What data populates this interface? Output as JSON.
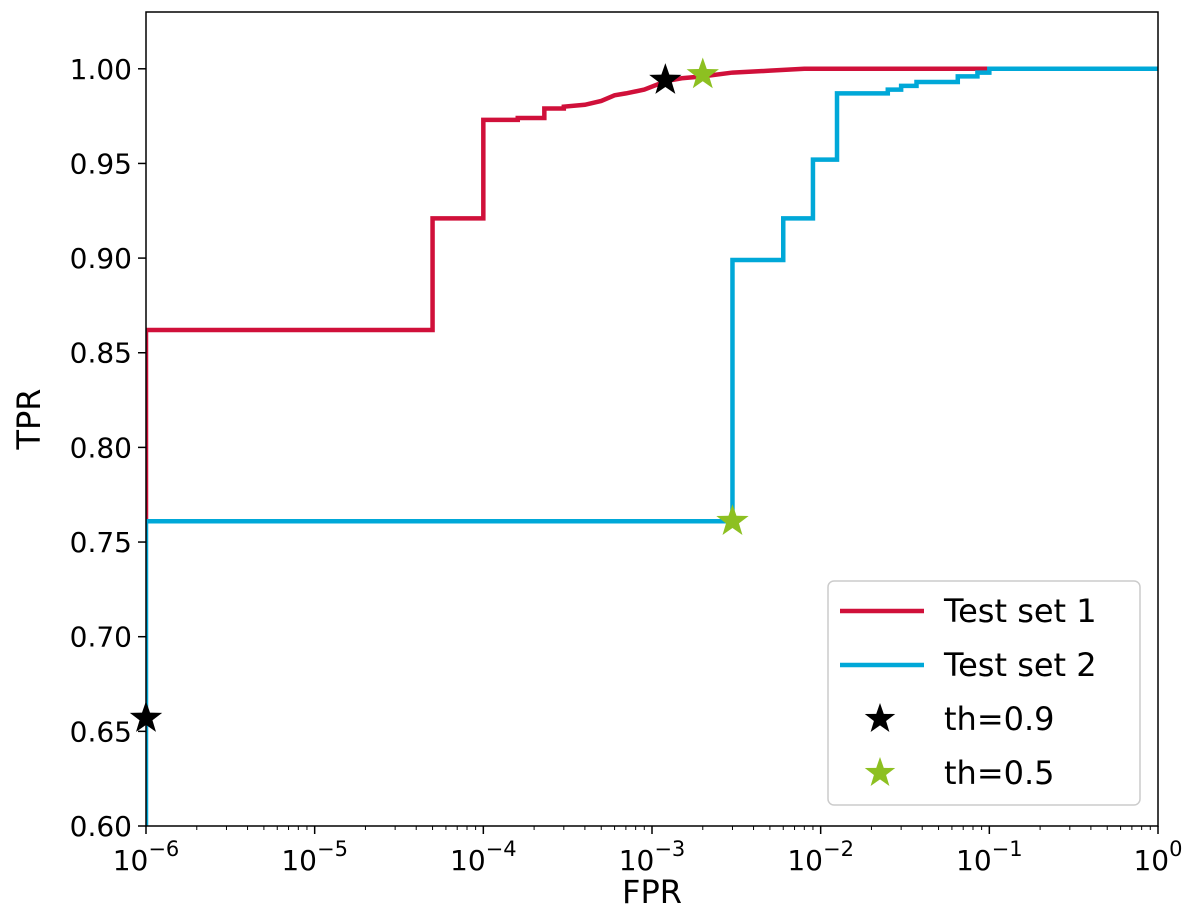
{
  "chart_data": {
    "type": "line",
    "title": "",
    "xlabel": "FPR",
    "ylabel": "TPR",
    "xscale": "log",
    "xlim": [
      1e-06,
      1
    ],
    "ylim": [
      0.6,
      1.03
    ],
    "x_ticks": [
      {
        "value": 1e-06,
        "base": "10",
        "exp": "−6"
      },
      {
        "value": 1e-05,
        "base": "10",
        "exp": "−5"
      },
      {
        "value": 0.0001,
        "base": "10",
        "exp": "−4"
      },
      {
        "value": 0.001,
        "base": "10",
        "exp": "−3"
      },
      {
        "value": 0.01,
        "base": "10",
        "exp": "−2"
      },
      {
        "value": 0.1,
        "base": "10",
        "exp": "−1"
      },
      {
        "value": 1,
        "base": "10",
        "exp": "0"
      }
    ],
    "y_ticks": [
      "0.60",
      "0.65",
      "0.70",
      "0.75",
      "0.80",
      "0.85",
      "0.90",
      "0.95",
      "1.00"
    ],
    "grid": false,
    "legend_position": "bottom-right",
    "series": [
      {
        "name": "Test set 1",
        "color": "#d0103a",
        "kind": "line",
        "points": [
          [
            1e-06,
            0.762
          ],
          [
            1e-06,
            0.862
          ],
          [
            5e-05,
            0.862
          ],
          [
            5e-05,
            0.921
          ],
          [
            0.0001,
            0.921
          ],
          [
            0.0001,
            0.973
          ],
          [
            0.00016,
            0.973
          ],
          [
            0.00016,
            0.974
          ],
          [
            0.00023,
            0.974
          ],
          [
            0.00023,
            0.979
          ],
          [
            0.0003,
            0.979
          ],
          [
            0.0003,
            0.98
          ],
          [
            0.0004,
            0.981
          ],
          [
            0.0005,
            0.983
          ],
          [
            0.0006,
            0.986
          ],
          [
            0.0007,
            0.987
          ],
          [
            0.0009,
            0.989
          ],
          [
            0.0011,
            0.992
          ],
          [
            0.0013,
            0.994
          ],
          [
            0.0015,
            0.995
          ],
          [
            0.002,
            0.996
          ],
          [
            0.003,
            0.998
          ],
          [
            0.005,
            0.999
          ],
          [
            0.008,
            1.0
          ],
          [
            0.1,
            1.0
          ]
        ]
      },
      {
        "name": "Test set 2",
        "color": "#00a8d8",
        "kind": "line",
        "points": [
          [
            1e-06,
            0.6
          ],
          [
            1e-06,
            0.761
          ],
          [
            0.003,
            0.761
          ],
          [
            0.003,
            0.899
          ],
          [
            0.006,
            0.899
          ],
          [
            0.006,
            0.921
          ],
          [
            0.009,
            0.921
          ],
          [
            0.009,
            0.952
          ],
          [
            0.0125,
            0.952
          ],
          [
            0.0125,
            0.987
          ],
          [
            0.025,
            0.987
          ],
          [
            0.025,
            0.989
          ],
          [
            0.03,
            0.989
          ],
          [
            0.03,
            0.991
          ],
          [
            0.037,
            0.991
          ],
          [
            0.037,
            0.993
          ],
          [
            0.065,
            0.993
          ],
          [
            0.065,
            0.996
          ],
          [
            0.085,
            0.996
          ],
          [
            0.085,
            0.998
          ],
          [
            0.1,
            0.998
          ],
          [
            0.1,
            1.0
          ],
          [
            1,
            1.0
          ]
        ]
      },
      {
        "name": "th=0.9",
        "color": "#000000",
        "kind": "marker",
        "points": [
          [
            1e-06,
            0.657
          ],
          [
            0.0012,
            0.994
          ]
        ]
      },
      {
        "name": "th=0.5",
        "color": "#8dc021",
        "kind": "marker",
        "points": [
          [
            0.003,
            0.761
          ],
          [
            0.002,
            0.997
          ]
        ]
      }
    ]
  }
}
